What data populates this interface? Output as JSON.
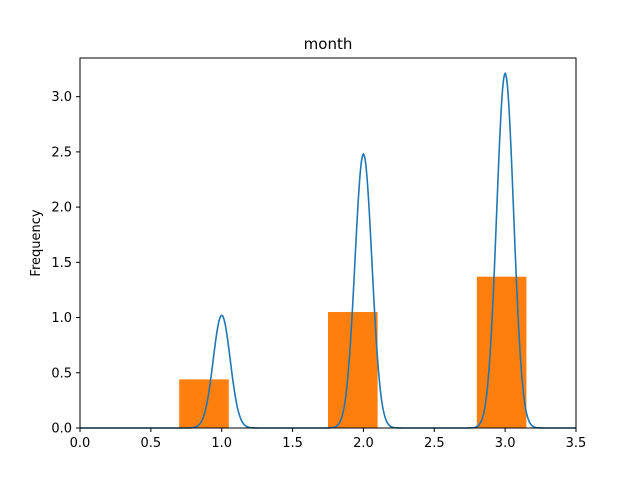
{
  "chart_data": {
    "type": "bar",
    "title": "month",
    "xlabel": "",
    "ylabel": "Frequency",
    "xlim": [
      0.0,
      3.5
    ],
    "ylim": [
      0.0,
      3.35
    ],
    "x_ticks": [
      "0.0",
      "0.5",
      "1.0",
      "1.5",
      "2.0",
      "2.5",
      "3.0",
      "3.5"
    ],
    "y_ticks": [
      "0.0",
      "0.5",
      "1.0",
      "1.5",
      "2.0",
      "2.5",
      "3.0"
    ],
    "grid": false,
    "bars": {
      "color": "#ff7f0e",
      "items": [
        {
          "x_start": 0.7,
          "x_end": 1.05,
          "value": 0.44
        },
        {
          "x_start": 1.75,
          "x_end": 2.1,
          "value": 1.05
        },
        {
          "x_start": 2.8,
          "x_end": 3.15,
          "value": 1.37
        }
      ]
    },
    "density_curve": {
      "color": "#1f77b4",
      "peaks": [
        {
          "center": 1.0,
          "height": 1.02,
          "width": 0.06
        },
        {
          "center": 2.0,
          "height": 2.48,
          "width": 0.06
        },
        {
          "center": 3.0,
          "height": 3.21,
          "width": 0.06
        }
      ]
    }
  }
}
